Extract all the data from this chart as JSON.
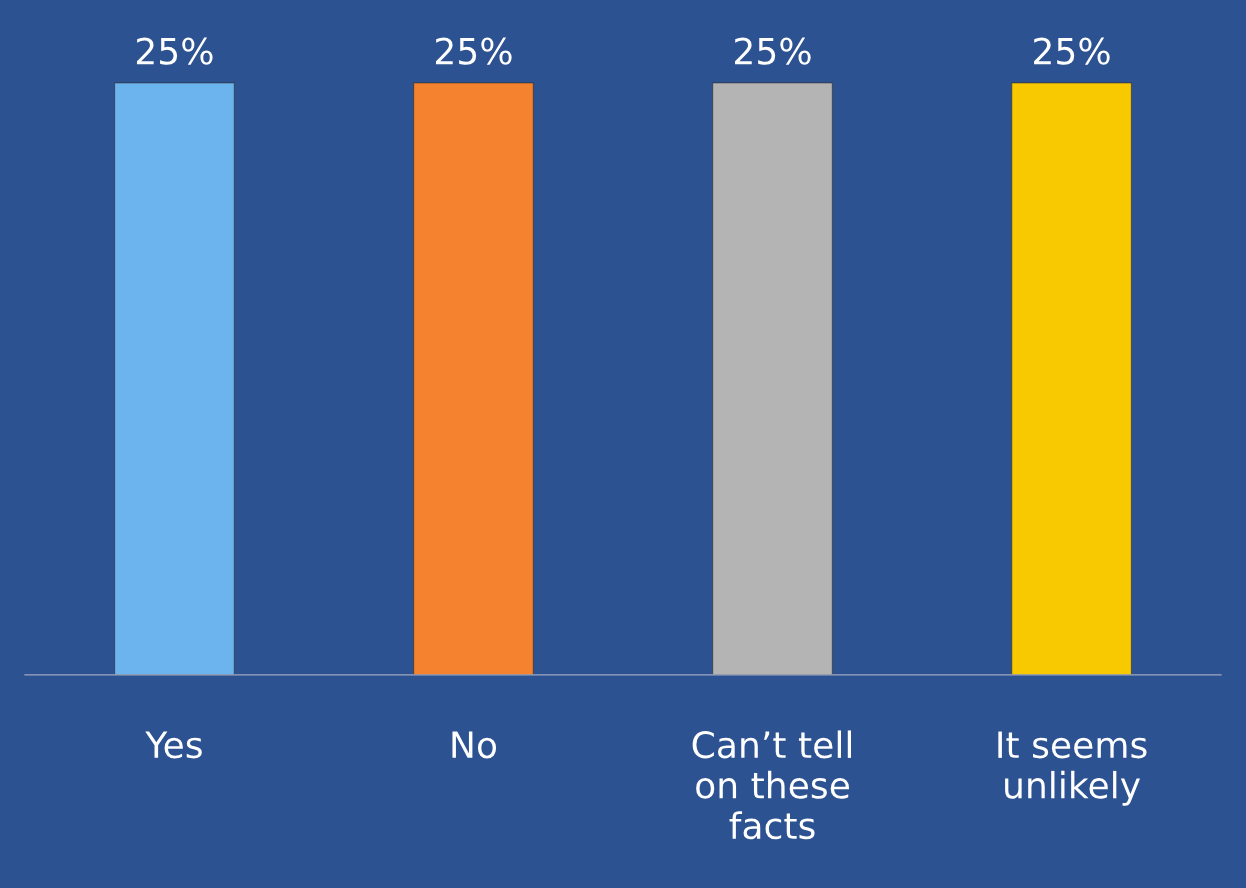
{
  "chart_data": {
    "type": "bar",
    "categories": [
      "Yes",
      "No",
      "Can’t tell\non these\nfacts",
      "It seems\nunlikely"
    ],
    "values": [
      25,
      25,
      25,
      25
    ],
    "colors": [
      "#6cb4ee",
      "#f5822e",
      "#b4b4b4",
      "#f8c800"
    ],
    "value_labels": [
      "25%",
      "25%",
      "25%",
      "25%"
    ],
    "tick_labels": "x"
  }
}
